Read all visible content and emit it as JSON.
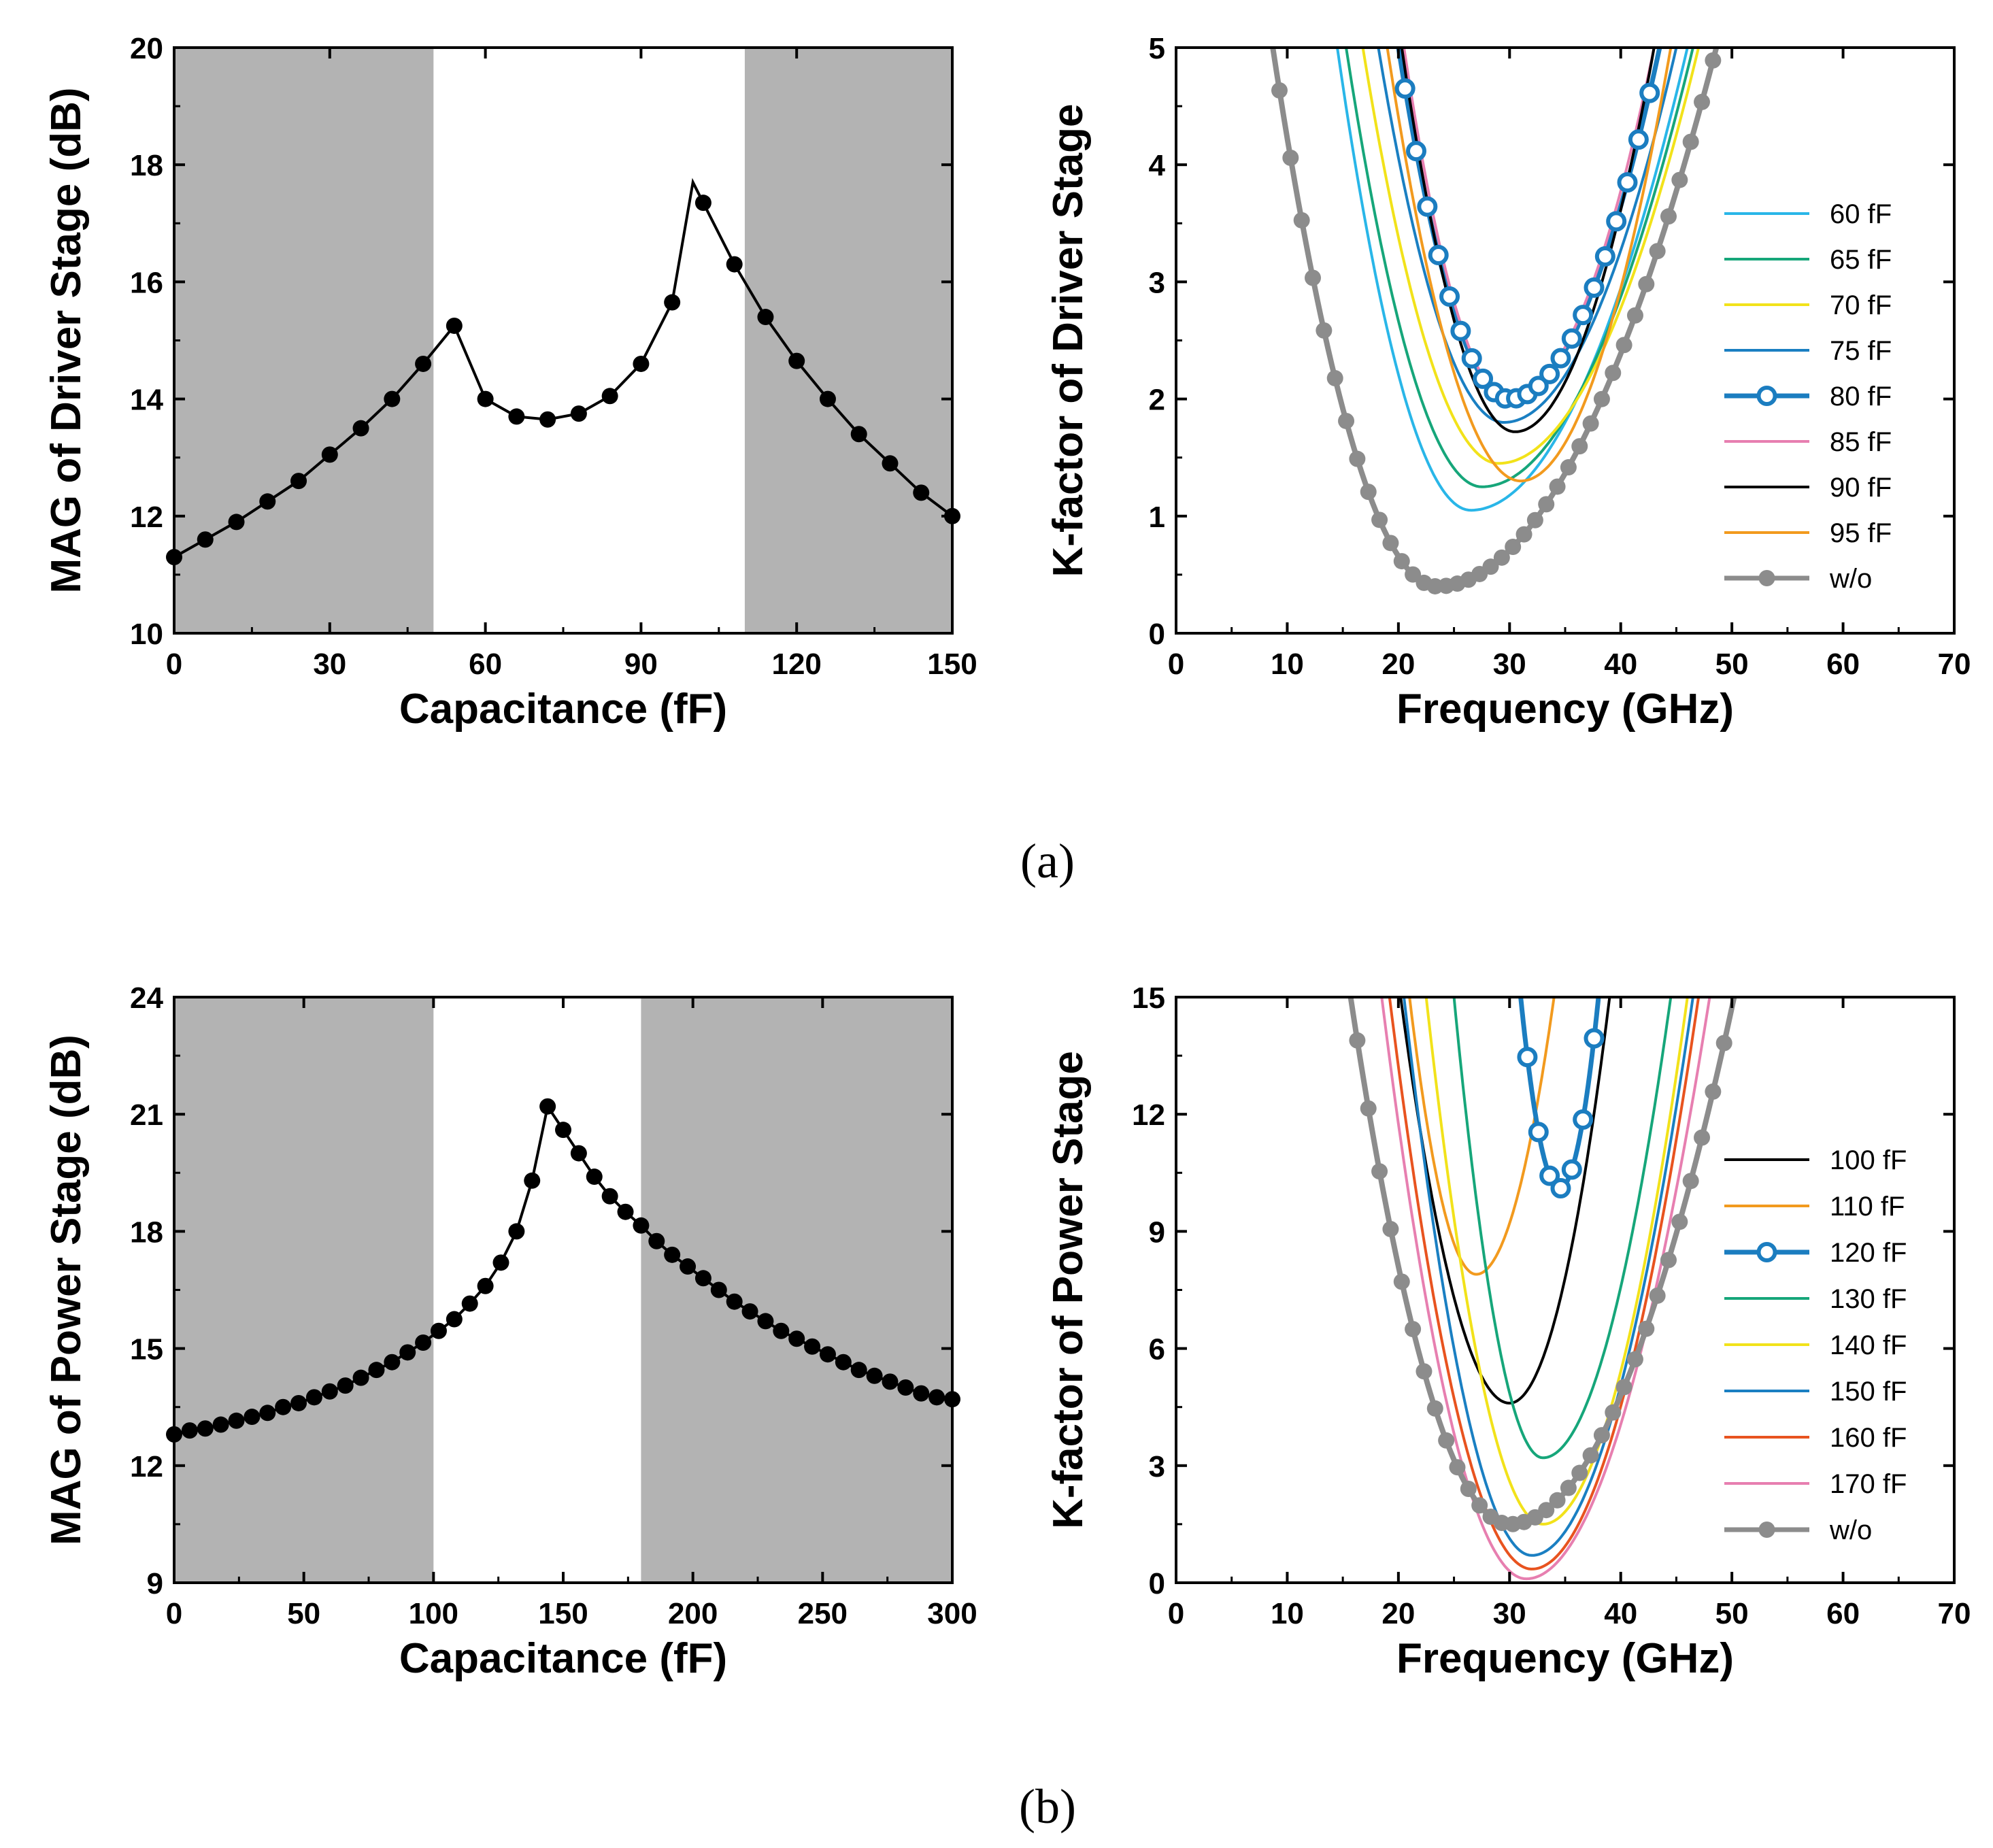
{
  "chart_data": [
    {
      "id": "mag-driver",
      "type": "line",
      "title": "",
      "xlabel": "Capacitance (fF)",
      "ylabel": "MAG of Driver Stage (dB)",
      "xlim": [
        0,
        150
      ],
      "ylim": [
        10,
        20
      ],
      "xticks": [
        0,
        30,
        60,
        90,
        120,
        150
      ],
      "yticks": [
        10,
        12,
        14,
        16,
        18,
        20
      ],
      "shaded_x_ranges": [
        [
          0,
          50
        ],
        [
          110,
          150
        ]
      ],
      "shade_color": "#b3b3b3",
      "series": [
        {
          "name": "MAG",
          "color": "#000000",
          "x": [
            0,
            6,
            12,
            18,
            24,
            30,
            36,
            42,
            48,
            54,
            60,
            66,
            72,
            78,
            84,
            90,
            96,
            100,
            102,
            108,
            114,
            120,
            126,
            132,
            138,
            144,
            150
          ],
          "y": [
            11.3,
            11.6,
            11.9,
            12.25,
            12.6,
            13.05,
            13.5,
            14.0,
            14.6,
            15.25,
            14.0,
            13.7,
            13.65,
            13.75,
            14.05,
            14.6,
            15.65,
            17.7,
            17.35,
            16.3,
            15.4,
            14.65,
            14.0,
            13.4,
            12.9,
            12.4,
            12.0
          ],
          "markers": [
            true,
            true,
            true,
            true,
            true,
            true,
            true,
            true,
            true,
            true,
            true,
            true,
            true,
            true,
            true,
            true,
            true,
            false,
            true,
            true,
            true,
            true,
            true,
            true,
            true,
            true,
            true
          ]
        }
      ]
    },
    {
      "id": "k-driver",
      "type": "line",
      "title": "",
      "xlabel": "Frequency (GHz)",
      "ylabel": "K-factor of Driver Stage",
      "xlim": [
        0,
        70
      ],
      "ylim": [
        0,
        5
      ],
      "xticks": [
        0,
        10,
        20,
        30,
        40,
        50,
        60,
        70
      ],
      "yticks": [
        0,
        1,
        2,
        3,
        4,
        5
      ],
      "legend_position": "right",
      "series": [
        {
          "name": "60 fF",
          "color": "#29b6e8",
          "min_x": 26.5,
          "min_y": 1.05,
          "fL": 14.5,
          "fR": 46.0
        },
        {
          "name": "65 fF",
          "color": "#16a67a",
          "min_x": 27.5,
          "min_y": 1.25,
          "fL": 15.3,
          "fR": 46.5
        },
        {
          "name": "70 fF",
          "color": "#f2e21a",
          "min_x": 29.0,
          "min_y": 1.45,
          "fL": 16.8,
          "fR": 47.0
        },
        {
          "name": "75 fF",
          "color": "#1a7fc2",
          "min_x": 29.5,
          "min_y": 1.8,
          "fL": 18.2,
          "fR": 45.0
        },
        {
          "name": "80 fF",
          "color": "#1b7dc0",
          "min_x": 30.0,
          "min_y": 2.0,
          "fL": 20.0,
          "fR": 43.5,
          "markers": "open-circle"
        },
        {
          "name": "85 fF",
          "color": "#e77fb0",
          "min_x": 30.0,
          "min_y": 2.0,
          "fL": 20.5,
          "fR": 43.0
        },
        {
          "name": "90 fF",
          "color": "#000000",
          "min_x": 30.5,
          "min_y": 1.72,
          "fL": 20.3,
          "fR": 43.0
        },
        {
          "name": "95 fF",
          "color": "#f29a1e",
          "min_x": 31.0,
          "min_y": 1.3,
          "fL": 19.0,
          "fR": 44.5
        },
        {
          "name": "w/o",
          "color": "#8c8c8c",
          "min_x": 23.5,
          "min_y": 0.4,
          "fL": 8.7,
          "fR": 48.6,
          "markers": "filled-circle"
        }
      ]
    },
    {
      "id": "mag-power",
      "type": "line",
      "title": "",
      "xlabel": "Capacitance (fF)",
      "ylabel": "MAG of Power Stage (dB)",
      "xlim": [
        0,
        300
      ],
      "ylim": [
        9,
        24
      ],
      "xticks": [
        0,
        50,
        100,
        150,
        200,
        250,
        300
      ],
      "yticks": [
        9,
        12,
        15,
        18,
        21,
        24
      ],
      "shaded_x_ranges": [
        [
          0,
          100
        ],
        [
          180,
          300
        ]
      ],
      "shade_color": "#b3b3b3",
      "series": [
        {
          "name": "MAG",
          "color": "#000000",
          "x": [
            0,
            6,
            12,
            18,
            24,
            30,
            36,
            42,
            48,
            54,
            60,
            66,
            72,
            78,
            84,
            90,
            96,
            102,
            108,
            114,
            120,
            126,
            132,
            138,
            144,
            150,
            156,
            162,
            168,
            174,
            180,
            186,
            192,
            198,
            204,
            210,
            216,
            222,
            228,
            234,
            240,
            246,
            252,
            258,
            264,
            270,
            276,
            282,
            288,
            294,
            300
          ],
          "y": [
            12.8,
            12.9,
            12.95,
            13.05,
            13.15,
            13.25,
            13.35,
            13.5,
            13.6,
            13.75,
            13.9,
            14.05,
            14.25,
            14.45,
            14.65,
            14.9,
            15.15,
            15.45,
            15.75,
            16.15,
            16.6,
            17.2,
            18.0,
            19.3,
            21.2,
            20.6,
            20.0,
            19.4,
            18.9,
            18.5,
            18.15,
            17.75,
            17.4,
            17.1,
            16.8,
            16.5,
            16.2,
            15.95,
            15.7,
            15.45,
            15.25,
            15.05,
            14.85,
            14.65,
            14.45,
            14.3,
            14.15,
            14.0,
            13.85,
            13.75,
            13.7
          ]
        }
      ]
    },
    {
      "id": "k-power",
      "type": "line",
      "title": "",
      "xlabel": "Frequency (GHz)",
      "ylabel": "K-factor of Power Stage",
      "xlim": [
        0,
        70
      ],
      "ylim": [
        0,
        15
      ],
      "xticks": [
        0,
        10,
        20,
        30,
        40,
        50,
        60,
        70
      ],
      "yticks": [
        0,
        3,
        6,
        9,
        12,
        15
      ],
      "legend_position": "right",
      "series": [
        {
          "name": "100 fF",
          "color": "#000000",
          "min_x": 30.0,
          "min_y": 4.6,
          "fL": 20.2,
          "fR": 39.0
        },
        {
          "name": "110 fF",
          "color": "#f29a1e",
          "min_x": 27.0,
          "min_y": 7.9,
          "fL": 21.0,
          "fR": 34.0
        },
        {
          "name": "120 fF",
          "color": "#1b7dc0",
          "min_x": 34.5,
          "min_y": 10.1,
          "fL": 31.0,
          "fR": 38.0,
          "markers": "open-circle"
        },
        {
          "name": "130 fF",
          "color": "#16a67a",
          "min_x": 33.0,
          "min_y": 3.2,
          "fL": 25.0,
          "fR": 44.5
        },
        {
          "name": "140 fF",
          "color": "#f2e21a",
          "min_x": 33.0,
          "min_y": 1.5,
          "fL": 22.5,
          "fR": 46.0
        },
        {
          "name": "150 fF",
          "color": "#1a7fc2",
          "min_x": 32.0,
          "min_y": 0.7,
          "fL": 20.5,
          "fR": 46.5
        },
        {
          "name": "160 fF",
          "color": "#e8531f",
          "min_x": 32.0,
          "min_y": 0.35,
          "fL": 19.2,
          "fR": 47.0
        },
        {
          "name": "170 fF",
          "color": "#e77fb0",
          "min_x": 31.5,
          "min_y": 0.1,
          "fL": 18.5,
          "fR": 48.0
        },
        {
          "name": "w/o",
          "color": "#8c8c8c",
          "min_x": 30.0,
          "min_y": 1.5,
          "fL": 15.7,
          "fR": 50.2,
          "markers": "filled-circle"
        }
      ]
    }
  ],
  "captions": {
    "a": "(a)",
    "b": "(b)"
  }
}
